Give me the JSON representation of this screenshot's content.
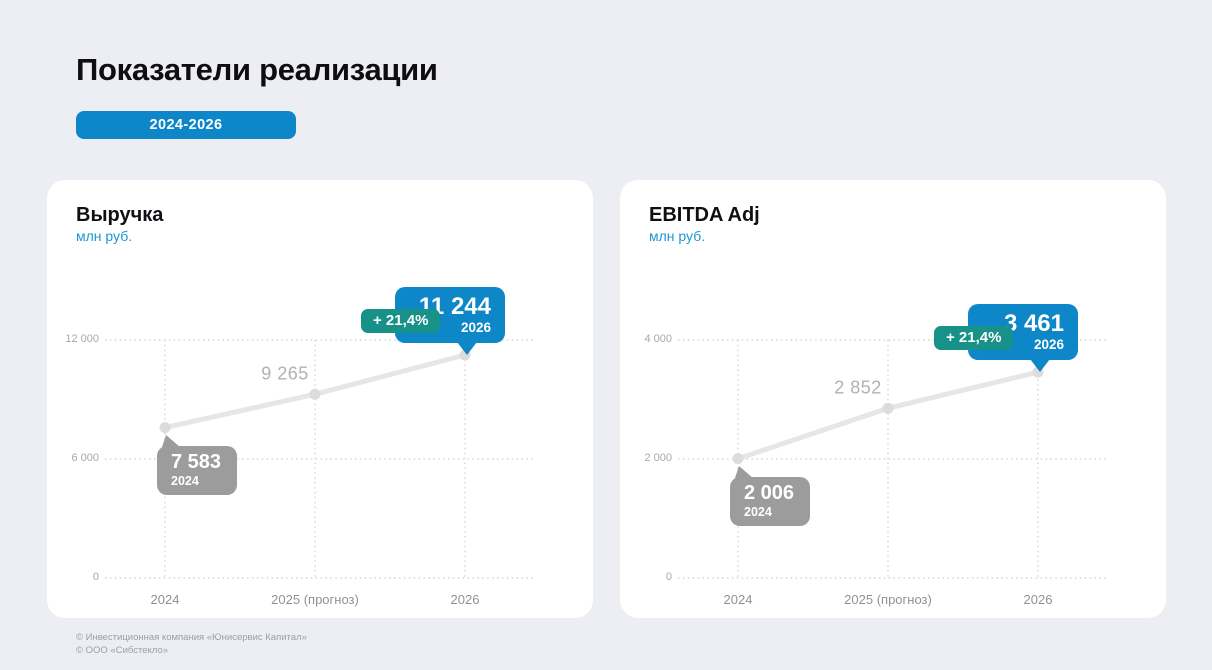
{
  "page": {
    "title": "Показатели реализации",
    "period_badge": "2024-2026",
    "footer": [
      "© Инвестиционная компания «Юнисервис Капитал»",
      "© ООО «Сибстекло»"
    ]
  },
  "colors": {
    "accent_blue": "#0d87c7",
    "growth_teal": "#189289",
    "neutral_gray_callout": "#9c9c9c",
    "line_gray": "#e6e6e8",
    "background": "#edeef3",
    "unit_blue": "#1e96d2"
  },
  "chart_data": [
    {
      "type": "line",
      "title": "Выручка",
      "ylabel": "млн руб.",
      "x": [
        "2024",
        "2025 (прогноз)",
        "2026"
      ],
      "values": [
        7583,
        9265,
        11244
      ],
      "ylim": [
        0,
        12000
      ],
      "yticks": [
        0,
        6000,
        12000
      ],
      "ytick_labels": [
        "0",
        "6 000",
        "12 000"
      ],
      "grid": "dotted",
      "legend": "none",
      "annotations": {
        "start": {
          "value": "7 583",
          "year": "2024"
        },
        "mid": "9 265",
        "growth": "+ 21,4%",
        "end": {
          "value": "11 244",
          "year": "2026"
        }
      }
    },
    {
      "type": "line",
      "title": "EBITDA Adj",
      "ylabel": "млн руб.",
      "x": [
        "2024",
        "2025 (прогноз)",
        "2026"
      ],
      "values": [
        2006,
        2852,
        3461
      ],
      "ylim": [
        0,
        4000
      ],
      "yticks": [
        0,
        2000,
        4000
      ],
      "ytick_labels": [
        "0",
        "2 000",
        "4 000"
      ],
      "grid": "dotted",
      "legend": "none",
      "annotations": {
        "start": {
          "value": "2 006",
          "year": "2024"
        },
        "mid": "2 852",
        "growth": "+ 21,4%",
        "end": {
          "value": "3 461",
          "year": "2026"
        }
      }
    }
  ]
}
